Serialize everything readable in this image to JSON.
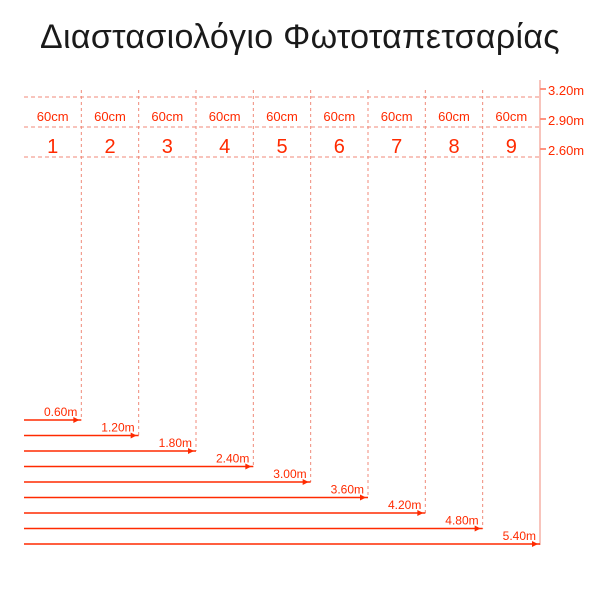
{
  "title": "Διαστασιολόγιο Φωτοταπετσαρίας",
  "accent_color": "#ff2a00",
  "guide_color": "#f08a7a",
  "panel_width_label": "60cm",
  "panels": [
    "1",
    "2",
    "3",
    "4",
    "5",
    "6",
    "7",
    "8",
    "9"
  ],
  "heights": [
    "3.20m",
    "2.90m",
    "2.60m"
  ],
  "widths": [
    "0.60m",
    "1.20m",
    "1.80m",
    "2.40m",
    "3.00m",
    "3.60m",
    "4.20m",
    "4.80m",
    "5.40m"
  ]
}
